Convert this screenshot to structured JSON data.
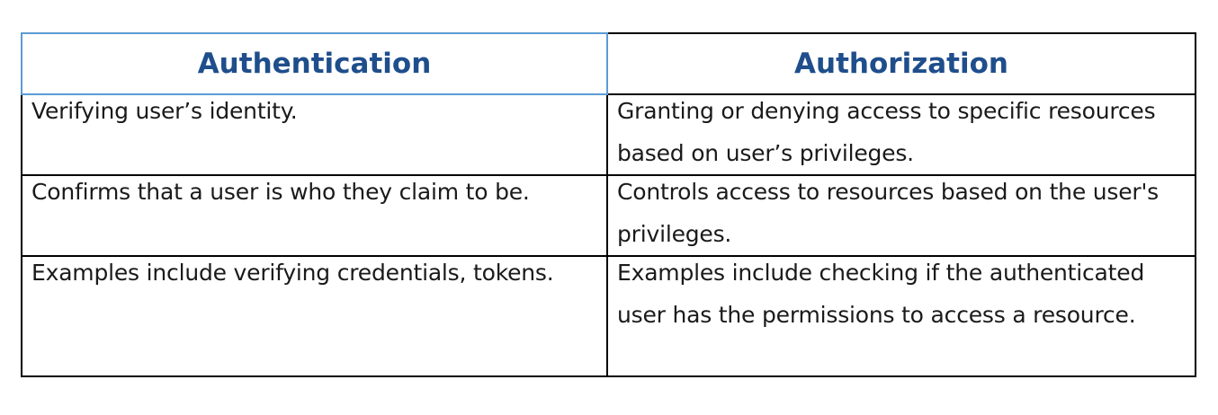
{
  "table": {
    "headers": [
      "Authentication",
      "Authorization"
    ],
    "rows": [
      [
        "Verifying user’s identity.",
        "Granting or denying access to specific resources based on user’s privileges."
      ],
      [
        "Confirms that a user is who they claim to be.",
        "Controls access to resources based on the user's privileges."
      ],
      [
        "Examples include verifying credentials, tokens.",
        "Examples include checking if the authenticated user has the permissions to access a resource."
      ]
    ]
  }
}
